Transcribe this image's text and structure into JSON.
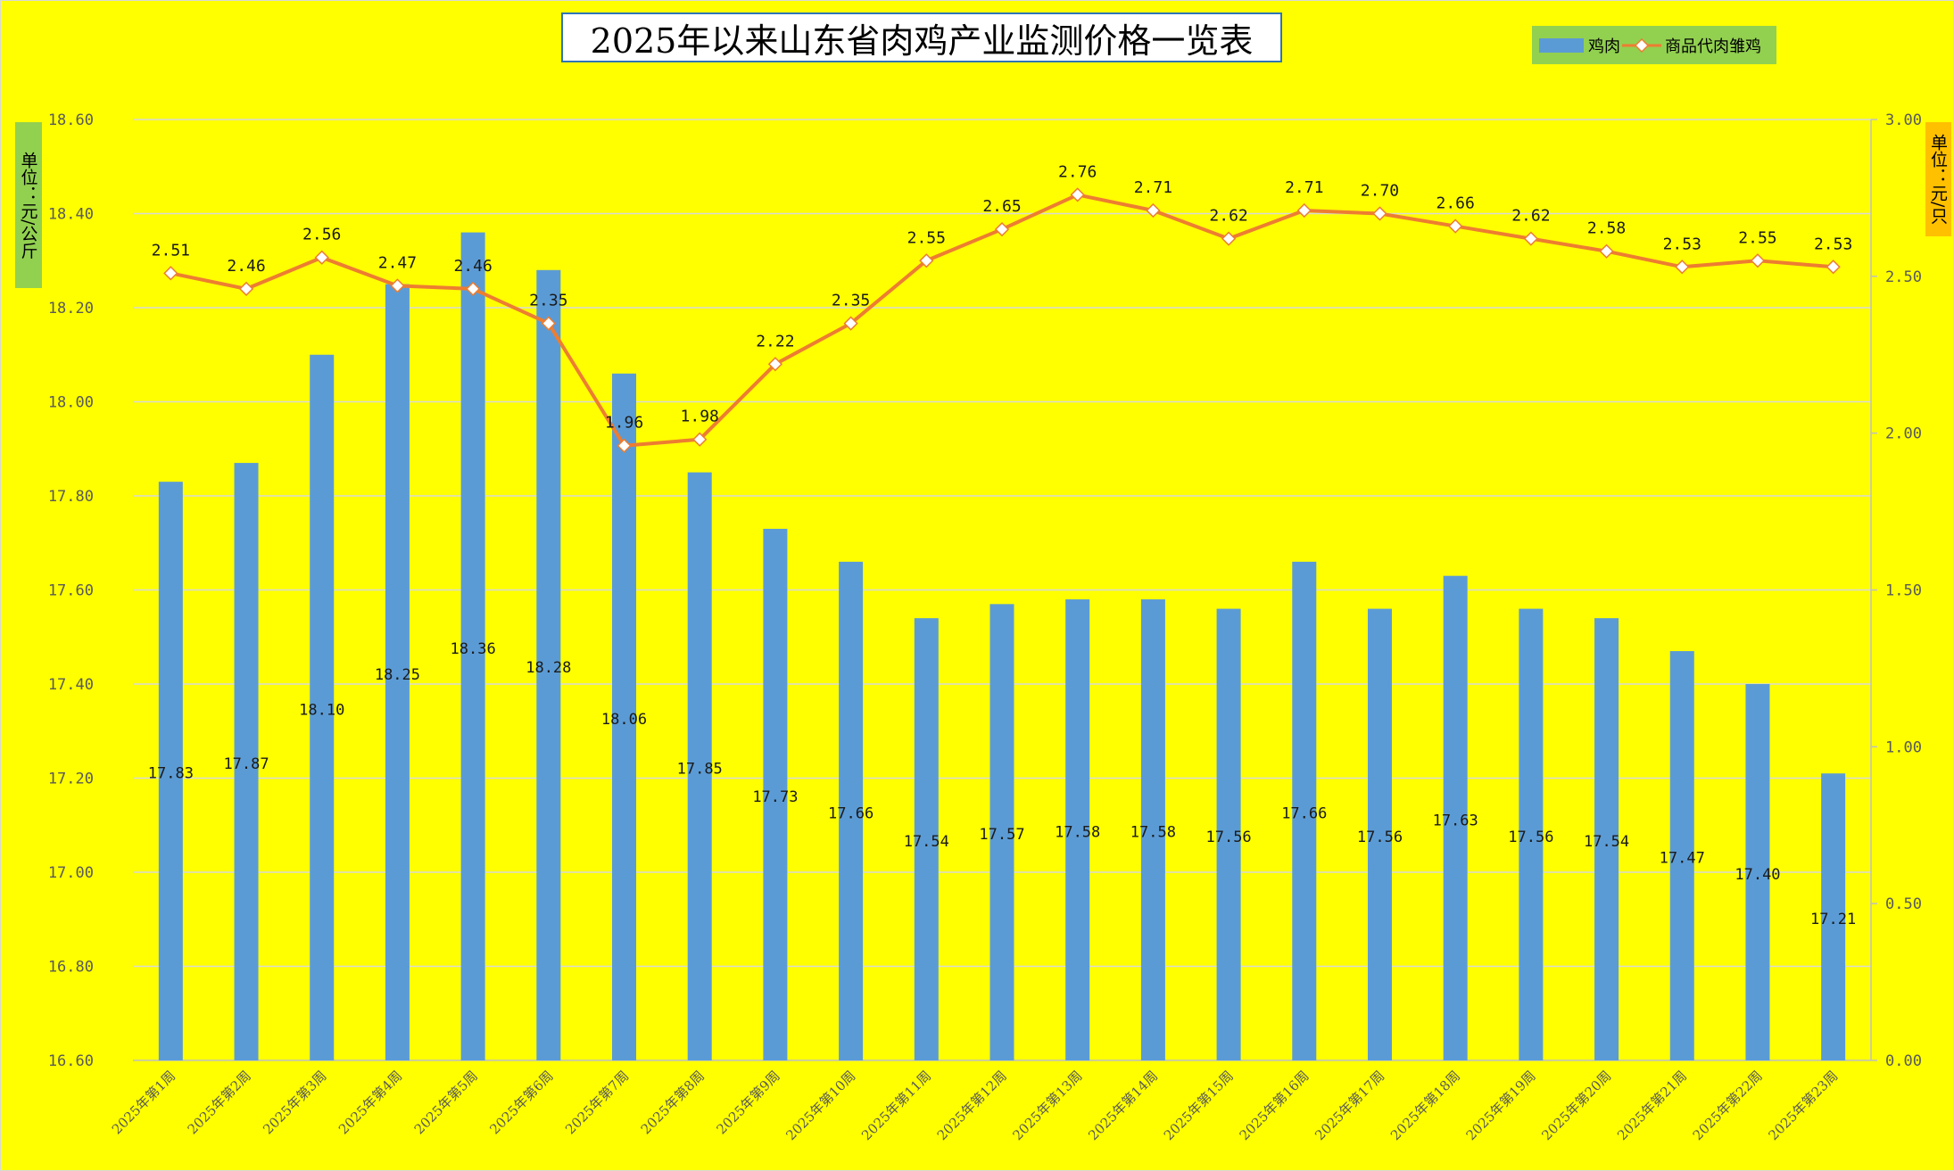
{
  "title": "2025年以来山东省肉鸡产业监测价格一览表",
  "legend": {
    "bar_label": "鸡肉",
    "line_label": "商品代肉雏鸡"
  },
  "left_axis_unit": "单位：元/公斤",
  "right_axis_unit": "单位：元/只",
  "colors": {
    "background": "#ffff00",
    "bar": "#5b9bd5",
    "line": "#ed7d31",
    "marker_fill": "#ffffff",
    "gridline": "#d9d9d9",
    "title_border": "#2e75b6",
    "legend_bg": "#92d050",
    "left_unit_bg": "#92d050",
    "right_unit_bg": "#ffc000",
    "axis_text": "#595959"
  },
  "chart_data": {
    "type": "bar",
    "categories": [
      "2025年第1周",
      "2025年第2周",
      "2025年第3周",
      "2025年第4周",
      "2025年第5周",
      "2025年第6周",
      "2025年第7周",
      "2025年第8周",
      "2025年第9周",
      "2025年第10周",
      "2025年第11周",
      "2025年第12周",
      "2025年第13周",
      "2025年第14周",
      "2025年第15周",
      "2025年第16周",
      "2025年第17周",
      "2025年第18周",
      "2025年第19周",
      "2025年第20周",
      "2025年第21周",
      "2025年第22周",
      "2025年第23周"
    ],
    "series": [
      {
        "name": "鸡肉",
        "type": "bar",
        "axis": "left",
        "values": [
          17.83,
          17.87,
          18.1,
          18.25,
          18.36,
          18.28,
          18.06,
          17.85,
          17.73,
          17.66,
          17.54,
          17.57,
          17.58,
          17.58,
          17.56,
          17.66,
          17.56,
          17.63,
          17.56,
          17.54,
          17.47,
          17.4,
          17.21
        ]
      },
      {
        "name": "商品代肉雏鸡",
        "type": "line",
        "axis": "right",
        "values": [
          2.51,
          2.46,
          2.56,
          2.47,
          2.46,
          2.35,
          1.96,
          1.98,
          2.22,
          2.35,
          2.55,
          2.65,
          2.76,
          2.71,
          2.62,
          2.71,
          2.7,
          2.66,
          2.62,
          2.58,
          2.53,
          2.55,
          2.53
        ]
      }
    ],
    "y_left": {
      "min": 16.6,
      "max": 18.6,
      "step": 0.2,
      "tick_labels": [
        "16.60",
        "16.80",
        "17.00",
        "17.20",
        "17.40",
        "17.60",
        "17.80",
        "18.00",
        "18.20",
        "18.40",
        "18.60"
      ]
    },
    "y_right": {
      "min": 0,
      "max": 3,
      "step": 0.5,
      "tick_labels": [
        "0.00",
        "0.50",
        "1.00",
        "1.50",
        "2.00",
        "2.50",
        "3.00"
      ]
    },
    "bar_data_labels": [
      "17.83",
      "17.87",
      "18.10",
      "18.25",
      "18.36",
      "18.28",
      "18.06",
      "17.85",
      "17.73",
      "17.66",
      "17.54",
      "17.57",
      "17.58",
      "17.58",
      "17.56",
      "17.66",
      "17.56",
      "17.63",
      "17.56",
      "17.54",
      "17.47",
      "17.40",
      "17.21"
    ],
    "line_data_labels": [
      "2.51",
      "2.46",
      "2.56",
      "2.47",
      "2.46",
      "2.35",
      "1.96",
      "1.98",
      "2.22",
      "2.35",
      "2.55",
      "2.65",
      "2.76",
      "2.71",
      "2.62",
      "2.71",
      "2.70",
      "2.66",
      "2.62",
      "2.58",
      "2.53",
      "2.55",
      "2.53"
    ],
    "grid": true,
    "legend_position": "top-right"
  }
}
